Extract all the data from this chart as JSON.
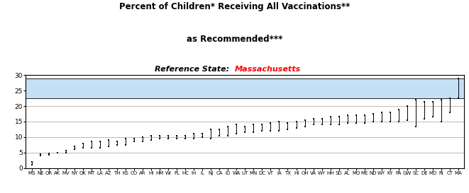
{
  "title_line1": "Percent of Children* Receiving All Vaccinations**",
  "title_line2": "as Recommended***",
  "ref_label": "Reference State:  ",
  "ref_state": "Massachusetts",
  "states": [
    "MS",
    "NE",
    "OR",
    "AK",
    "MV",
    "NY",
    "OK",
    "MT",
    "LA",
    "AZ",
    "TH",
    "KS",
    "CO",
    "AR",
    "HI",
    "HM",
    "WI",
    "PL",
    "HC",
    "IH",
    "IL",
    "NJ",
    "CA",
    "ID",
    "WA",
    "UT",
    "MN",
    "DC",
    "VT",
    "IA",
    "TX",
    "HI",
    "OH",
    "VA",
    "WY",
    "HH",
    "SD",
    "AL",
    "MO",
    "ME",
    "ND",
    "WY",
    "KY",
    "PA",
    "GW",
    "SC",
    "DE",
    "MD",
    "RI",
    "CT",
    "MA"
  ],
  "lows": [
    1.0,
    4.0,
    4.2,
    5.0,
    5.0,
    6.0,
    6.5,
    6.5,
    6.5,
    7.0,
    7.5,
    7.5,
    8.5,
    8.5,
    9.0,
    9.5,
    9.5,
    9.5,
    9.5,
    9.5,
    10.0,
    9.5,
    10.5,
    10.5,
    11.0,
    11.5,
    11.5,
    12.0,
    12.0,
    12.0,
    12.5,
    13.0,
    13.5,
    14.0,
    14.0,
    14.0,
    14.0,
    14.5,
    14.5,
    14.5,
    15.0,
    15.0,
    15.0,
    15.0,
    15.5,
    13.5,
    16.0,
    16.5,
    15.0,
    18.0,
    22.5
  ],
  "highs": [
    2.0,
    4.5,
    4.8,
    5.0,
    5.5,
    7.0,
    8.0,
    8.5,
    8.5,
    9.0,
    8.5,
    9.5,
    9.5,
    10.0,
    10.5,
    10.5,
    10.5,
    10.5,
    10.5,
    11.0,
    11.0,
    12.5,
    12.5,
    13.5,
    14.0,
    13.5,
    14.0,
    14.0,
    14.5,
    15.0,
    14.5,
    15.0,
    15.5,
    16.0,
    16.0,
    16.5,
    16.5,
    17.0,
    17.0,
    17.0,
    17.5,
    18.0,
    18.0,
    19.0,
    20.0,
    22.0,
    21.5,
    21.5,
    22.0,
    22.5,
    29.0
  ],
  "ref_band_low": 22.5,
  "ref_band_high": 29.0,
  "ylim": [
    0,
    30
  ],
  "yticks": [
    0,
    5,
    10,
    15,
    20,
    25,
    30
  ],
  "band_color": "#c5dff5",
  "marker_color": "#000000",
  "line_color": "#000000",
  "bg_color": "#ffffff",
  "title_fontsize": 8.5,
  "ref_fontsize": 8.0,
  "tick_fontsize": 5.0,
  "ytick_fontsize": 6.5,
  "figsize": [
    6.61,
    2.73
  ],
  "dpi": 100
}
